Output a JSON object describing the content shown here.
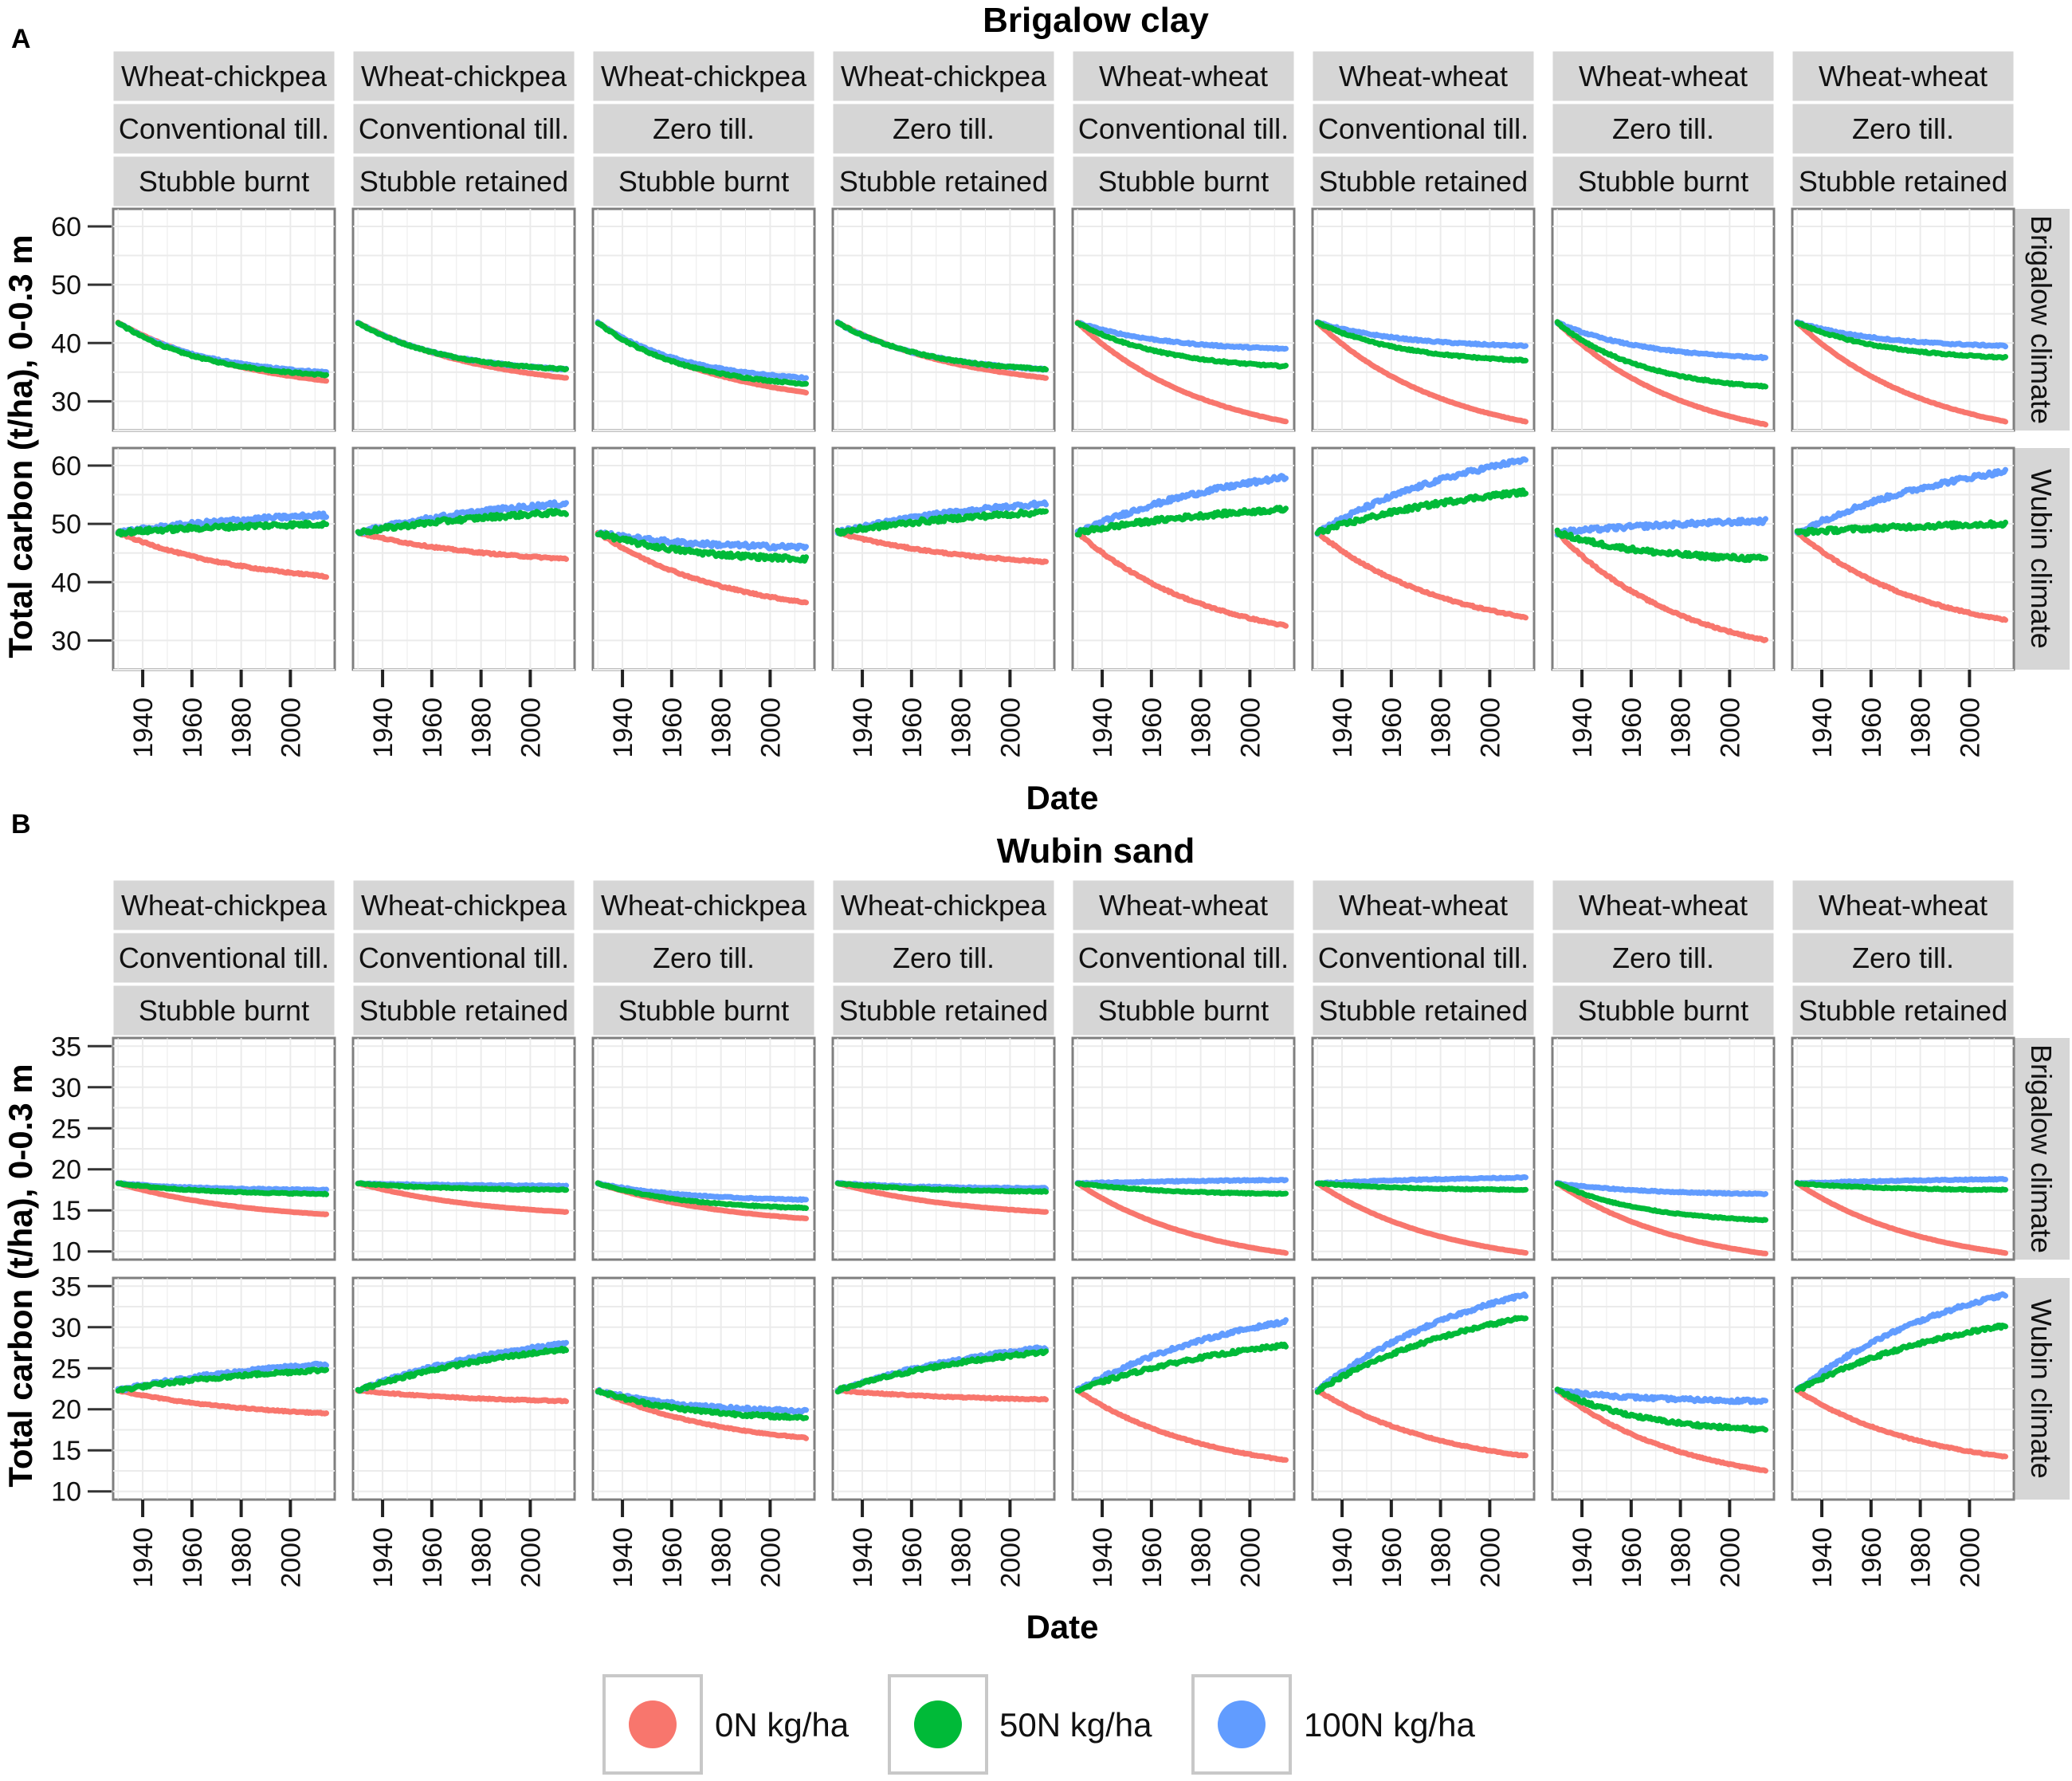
{
  "figure": {
    "panel_labels": [
      "A",
      "B"
    ],
    "xlabel": "Date",
    "ylabel": "Total carbon (t/ha), 0-0.3 m"
  },
  "legend": {
    "items": [
      {
        "label": "0N kg/ha",
        "color": "#F8766D"
      },
      {
        "label": "50N kg/ha",
        "color": "#00BA38"
      },
      {
        "label": "100N kg/ha",
        "color": "#619CFF"
      }
    ]
  },
  "chart_data": [
    {
      "type": "line",
      "title": "Brigalow clay",
      "xlabel": "Date",
      "ylabel": "Total carbon (t/ha), 0-0.3 m",
      "x_ticks": [
        "1940",
        "1960",
        "1980",
        "2000"
      ],
      "xlim": [
        1928,
        2018
      ],
      "y_ticks": [
        30,
        40,
        50,
        60
      ],
      "ylim": [
        25,
        63
      ],
      "series_names": [
        "0N kg/ha",
        "50N kg/ha",
        "100N kg/ha"
      ],
      "columns": [
        [
          "Wheat-chickpea",
          "Conventional till.",
          "Stubble burnt"
        ],
        [
          "Wheat-chickpea",
          "Conventional till.",
          "Stubble retained"
        ],
        [
          "Wheat-chickpea",
          "Zero till.",
          "Stubble burnt"
        ],
        [
          "Wheat-chickpea",
          "Zero till.",
          "Stubble retained"
        ],
        [
          "Wheat-wheat",
          "Conventional till.",
          "Stubble burnt"
        ],
        [
          "Wheat-wheat",
          "Conventional till.",
          "Stubble retained"
        ],
        [
          "Wheat-wheat",
          "Zero till.",
          "Stubble burnt"
        ],
        [
          "Wheat-wheat",
          "Zero till.",
          "Stubble retained"
        ]
      ],
      "rows": [
        "Brigalow climate",
        "Wubin climate"
      ],
      "start": 43.5,
      "noise_wubin": 0.8,
      "endpoints_2015": [
        [
          [
            33.5,
            34.5,
            35.0
          ],
          [
            34.0,
            35.5,
            35.5
          ],
          [
            31.5,
            33.0,
            34.0
          ],
          [
            34.0,
            35.5,
            35.5
          ],
          [
            26.5,
            36.0,
            39.0
          ],
          [
            26.5,
            37.0,
            39.5
          ],
          [
            26.0,
            32.5,
            37.5
          ],
          [
            26.5,
            37.5,
            39.5
          ]
        ],
        [
          [
            41.0,
            50.0,
            51.5
          ],
          [
            44.0,
            52.0,
            53.5
          ],
          [
            36.5,
            44.0,
            46.0
          ],
          [
            43.5,
            52.0,
            53.5
          ],
          [
            32.5,
            52.5,
            58.0
          ],
          [
            34.0,
            55.5,
            61.0
          ],
          [
            30.0,
            44.0,
            50.5
          ],
          [
            33.5,
            50.0,
            59.0
          ]
        ]
      ],
      "start_wubin": 48.5
    },
    {
      "type": "line",
      "title": "Wubin sand",
      "xlabel": "Date",
      "ylabel": "Total carbon (t/ha), 0-0.3 m",
      "x_ticks": [
        "1940",
        "1960",
        "1980",
        "2000"
      ],
      "xlim": [
        1928,
        2018
      ],
      "y_ticks": [
        10,
        15,
        20,
        25,
        30,
        35
      ],
      "ylim": [
        9,
        36
      ],
      "series_names": [
        "0N kg/ha",
        "50N kg/ha",
        "100N kg/ha"
      ],
      "columns": [
        [
          "Wheat-chickpea",
          "Conventional till.",
          "Stubble burnt"
        ],
        [
          "Wheat-chickpea",
          "Conventional till.",
          "Stubble retained"
        ],
        [
          "Wheat-chickpea",
          "Zero till.",
          "Stubble burnt"
        ],
        [
          "Wheat-chickpea",
          "Zero till.",
          "Stubble retained"
        ],
        [
          "Wheat-wheat",
          "Conventional till.",
          "Stubble burnt"
        ],
        [
          "Wheat-wheat",
          "Conventional till.",
          "Stubble retained"
        ],
        [
          "Wheat-wheat",
          "Zero till.",
          "Stubble burnt"
        ],
        [
          "Wheat-wheat",
          "Zero till.",
          "Stubble retained"
        ]
      ],
      "rows": [
        "Brigalow climate",
        "Wubin climate"
      ],
      "start": 18.3,
      "noise_wubin": 0.4,
      "endpoints_2015": [
        [
          [
            14.5,
            17.0,
            17.5
          ],
          [
            14.8,
            17.5,
            18.0
          ],
          [
            14.0,
            15.3,
            16.3
          ],
          [
            14.8,
            17.3,
            17.7
          ],
          [
            9.8,
            17.0,
            18.7
          ],
          [
            9.8,
            17.5,
            19.0
          ],
          [
            9.7,
            13.8,
            17.0
          ],
          [
            9.8,
            17.5,
            18.8
          ]
        ],
        [
          [
            19.5,
            24.8,
            25.5
          ],
          [
            21.0,
            27.3,
            28.0
          ],
          [
            16.5,
            19.0,
            19.8
          ],
          [
            21.2,
            27.0,
            27.5
          ],
          [
            13.8,
            27.8,
            30.7
          ],
          [
            14.3,
            31.2,
            34.0
          ],
          [
            12.5,
            17.5,
            21.0
          ],
          [
            14.2,
            30.2,
            34.0
          ]
        ]
      ],
      "start_wubin": 22.3
    }
  ]
}
